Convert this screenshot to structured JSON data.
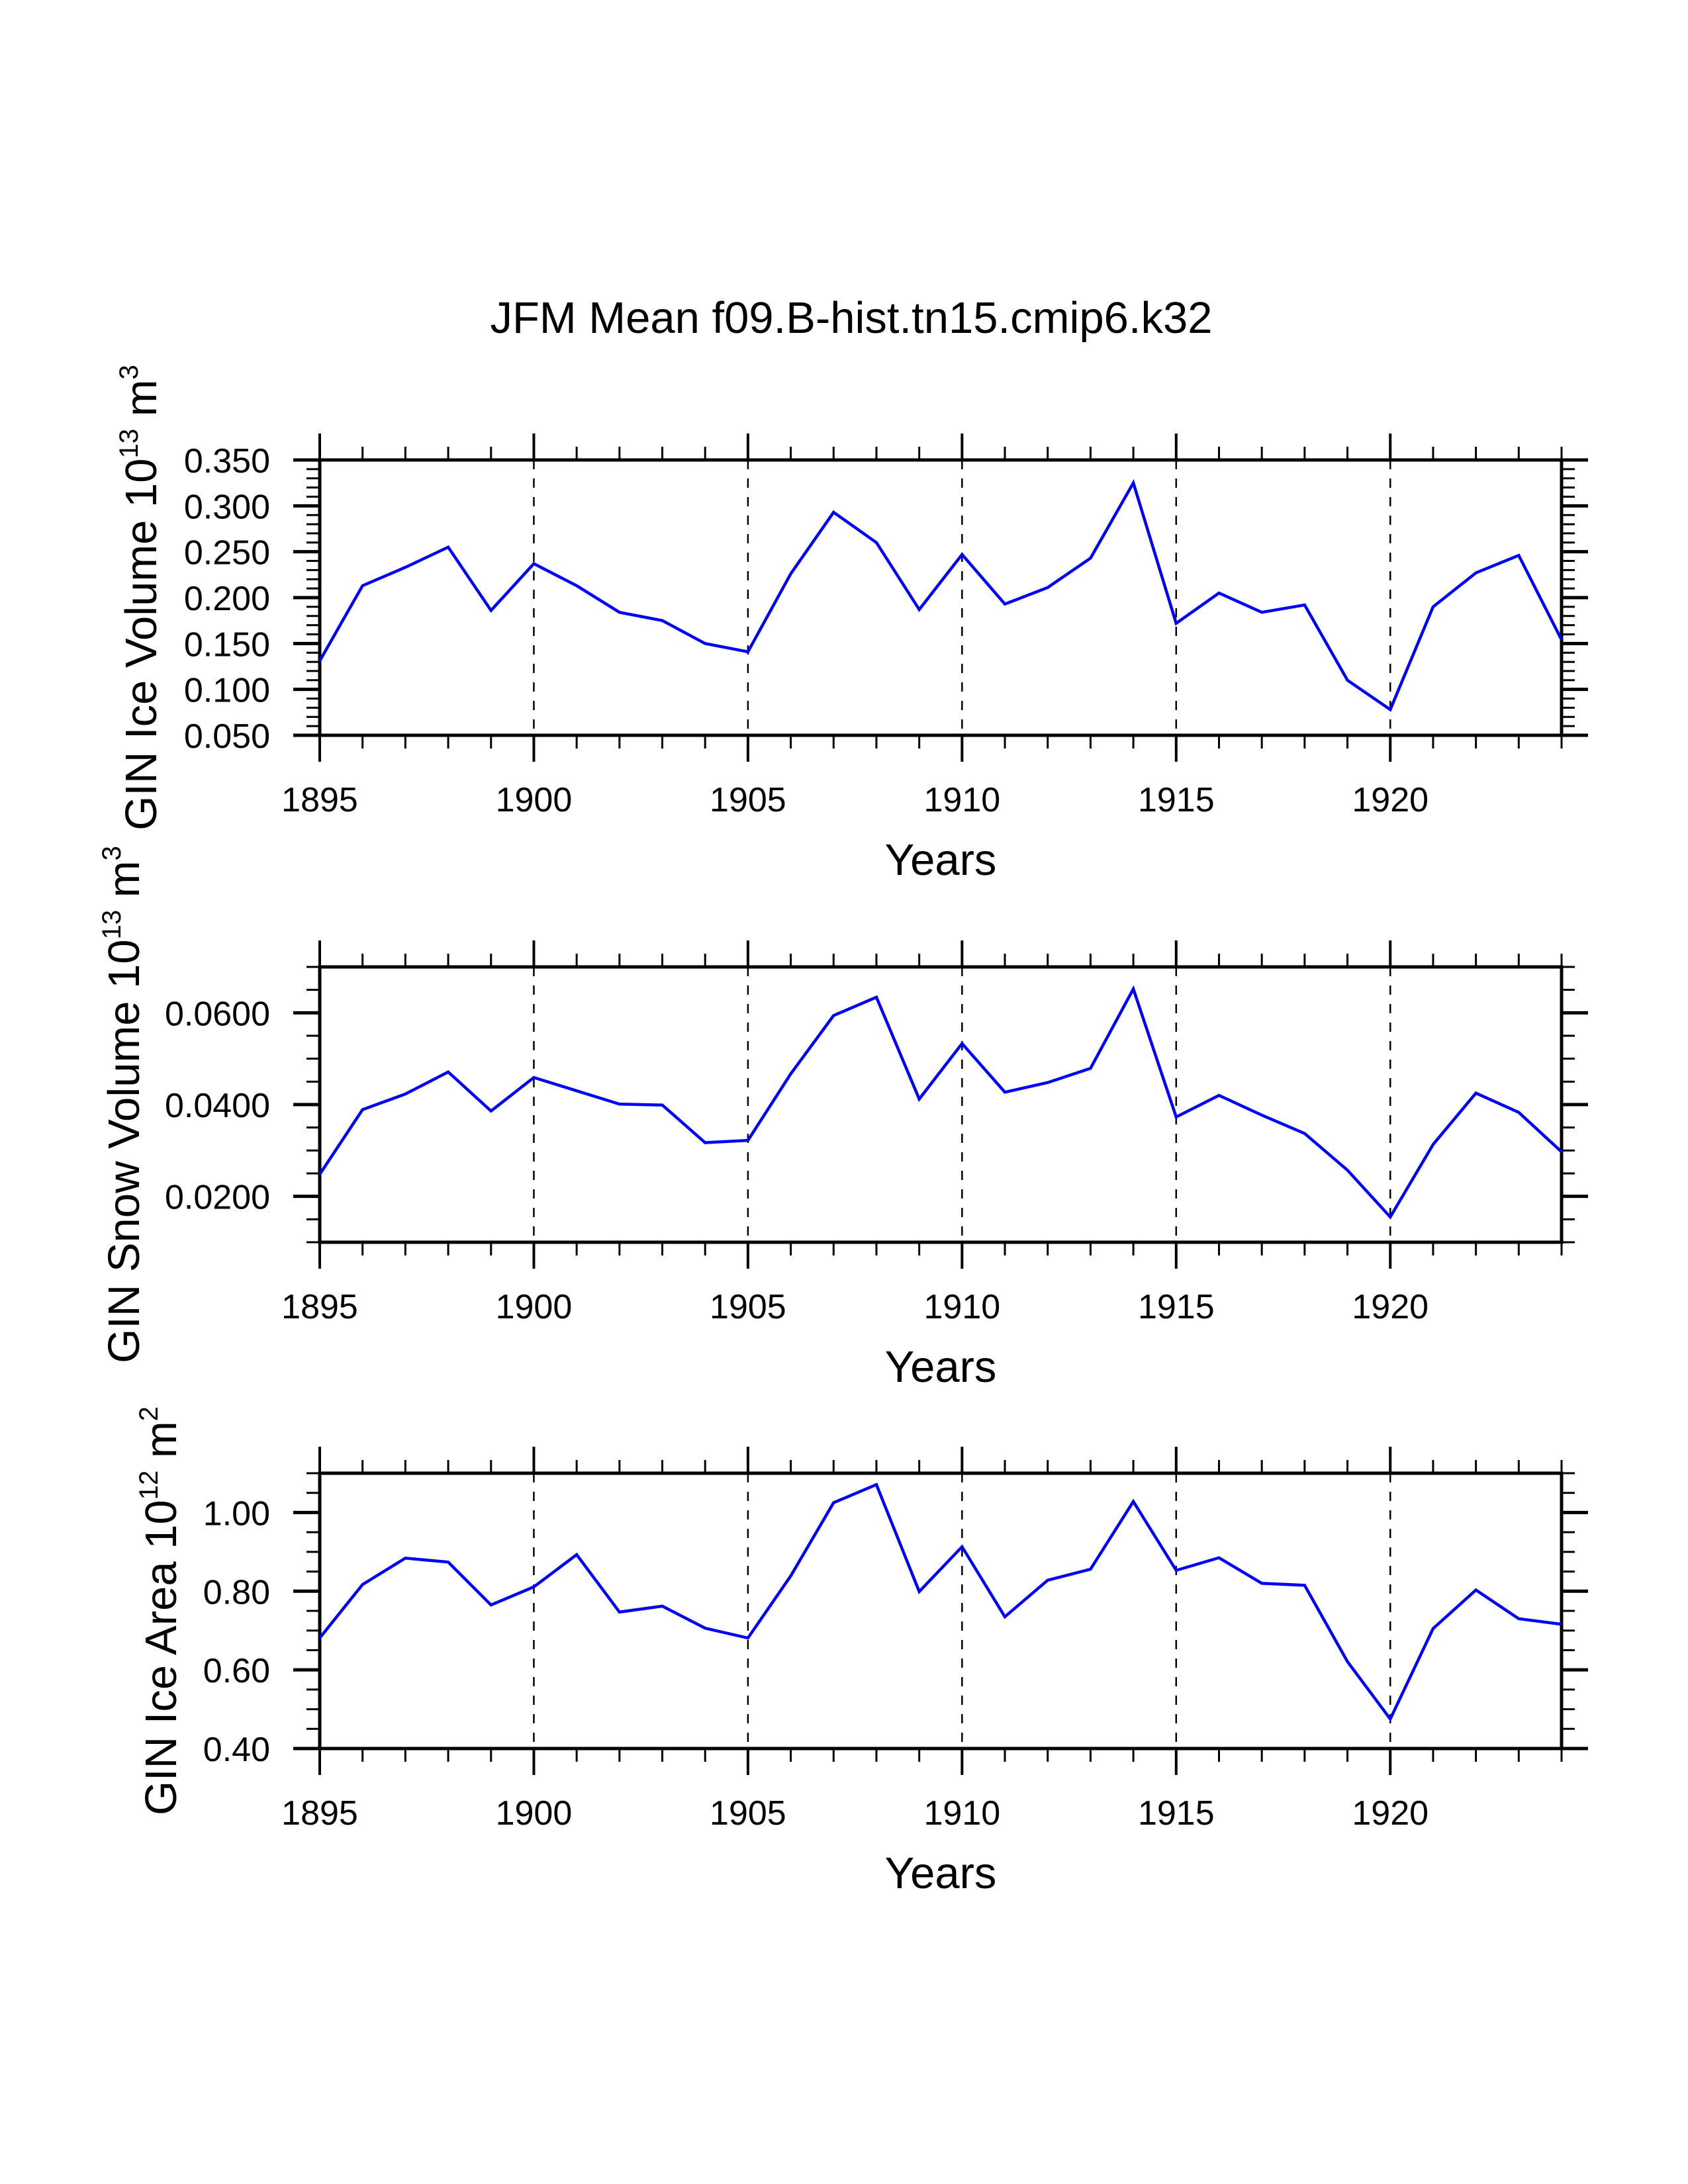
{
  "page": {
    "title": "JFM Mean f09.B-hist.tn15.cmip6.k32"
  },
  "chart_data": [
    {
      "type": "line",
      "title": "JFM Mean f09.B-hist.tn15.cmip6.k32",
      "xlabel": "Years",
      "ylabel": {
        "base": "GIN Ice Volume 10",
        "exp": "13",
        "unit": " m",
        "unit_exp": "3"
      },
      "xlim": [
        1895,
        1924
      ],
      "ylim": [
        0.05,
        0.35
      ],
      "x_major_ticks": [
        1895,
        1900,
        1905,
        1910,
        1915,
        1920
      ],
      "x_tick_labels": [
        "1895",
        "1900",
        "1905",
        "1910",
        "1915",
        "1920"
      ],
      "x_minor_step": 1,
      "y_major_ticks": [
        0.05,
        0.1,
        0.15,
        0.2,
        0.25,
        0.3,
        0.35
      ],
      "y_tick_labels": [
        "0.050",
        "0.100",
        "0.150",
        "0.200",
        "0.250",
        "0.300",
        "0.350"
      ],
      "y_minor_step": 0.01,
      "grid": {
        "x_dashed_at": [
          1900,
          1905,
          1910,
          1915,
          1920
        ],
        "y": false
      },
      "line_color": "#0000ff",
      "x": [
        1895,
        1896,
        1897,
        1898,
        1899,
        1900,
        1901,
        1902,
        1903,
        1904,
        1905,
        1906,
        1907,
        1908,
        1909,
        1910,
        1911,
        1912,
        1913,
        1914,
        1915,
        1916,
        1917,
        1918,
        1919,
        1920,
        1921,
        1922,
        1923,
        1924
      ],
      "series": [
        {
          "name": "GIN Ice Volume",
          "values": [
            0.131,
            0.213,
            0.233,
            0.255,
            0.186,
            0.237,
            0.213,
            0.184,
            0.175,
            0.15,
            0.141,
            0.226,
            0.293,
            0.26,
            0.187,
            0.247,
            0.193,
            0.211,
            0.243,
            0.325,
            0.172,
            0.205,
            0.184,
            0.192,
            0.11,
            0.078,
            0.19,
            0.227,
            0.246,
            0.154
          ]
        }
      ]
    },
    {
      "type": "line",
      "title": "",
      "xlabel": "Years",
      "ylabel": {
        "base": "GIN Snow Volume 10",
        "exp": "13",
        "unit": " m",
        "unit_exp": "3"
      },
      "xlim": [
        1895,
        1924
      ],
      "ylim": [
        0.01,
        0.07
      ],
      "x_major_ticks": [
        1895,
        1900,
        1905,
        1910,
        1915,
        1920
      ],
      "x_tick_labels": [
        "1895",
        "1900",
        "1905",
        "1910",
        "1915",
        "1920"
      ],
      "x_minor_step": 1,
      "y_major_ticks": [
        0.02,
        0.04,
        0.06
      ],
      "y_tick_labels": [
        "0.0200",
        "0.0400",
        "0.0600"
      ],
      "y_minor_step": 0.005,
      "grid": {
        "x_dashed_at": [
          1900,
          1905,
          1910,
          1915,
          1920
        ],
        "y": false
      },
      "line_color": "#0000ff",
      "x": [
        1895,
        1896,
        1897,
        1898,
        1899,
        1900,
        1901,
        1902,
        1903,
        1904,
        1905,
        1906,
        1907,
        1908,
        1909,
        1910,
        1911,
        1912,
        1913,
        1914,
        1915,
        1916,
        1917,
        1918,
        1919,
        1920,
        1921,
        1922,
        1923,
        1924
      ],
      "series": [
        {
          "name": "GIN Snow Volume",
          "values": [
            0.0248,
            0.0389,
            0.0423,
            0.0471,
            0.0386,
            0.0459,
            0.043,
            0.0401,
            0.0399,
            0.0317,
            0.0322,
            0.0467,
            0.0594,
            0.0634,
            0.0412,
            0.0533,
            0.0427,
            0.0448,
            0.0479,
            0.0652,
            0.0373,
            0.042,
            0.0377,
            0.0337,
            0.0257,
            0.0155,
            0.0313,
            0.0425,
            0.0383,
            0.0297
          ]
        }
      ]
    },
    {
      "type": "line",
      "title": "",
      "xlabel": "Years",
      "ylabel": {
        "base": "GIN Ice Area 10",
        "exp": "12",
        "unit": " m",
        "unit_exp": "2"
      },
      "xlim": [
        1895,
        1924
      ],
      "ylim": [
        0.4,
        1.1
      ],
      "x_major_ticks": [
        1895,
        1900,
        1905,
        1910,
        1915,
        1920
      ],
      "x_tick_labels": [
        "1895",
        "1900",
        "1905",
        "1910",
        "1915",
        "1920"
      ],
      "x_minor_step": 1,
      "y_major_ticks": [
        0.4,
        0.6,
        0.8,
        1.0
      ],
      "y_tick_labels": [
        "0.40",
        "0.60",
        "0.80",
        "1.00"
      ],
      "y_minor_step": 0.05,
      "grid": {
        "x_dashed_at": [
          1900,
          1905,
          1910,
          1915,
          1920
        ],
        "y": false
      },
      "line_color": "#0000ff",
      "x": [
        1895,
        1896,
        1897,
        1898,
        1899,
        1900,
        1901,
        1902,
        1903,
        1904,
        1905,
        1906,
        1907,
        1908,
        1909,
        1910,
        1911,
        1912,
        1913,
        1914,
        1915,
        1916,
        1917,
        1918,
        1919,
        1920,
        1921,
        1922,
        1923,
        1924
      ],
      "series": [
        {
          "name": "GIN Ice Area",
          "values": [
            0.681,
            0.817,
            0.884,
            0.874,
            0.765,
            0.811,
            0.893,
            0.747,
            0.762,
            0.706,
            0.681,
            0.839,
            1.025,
            1.071,
            0.799,
            0.913,
            0.735,
            0.828,
            0.856,
            1.028,
            0.853,
            0.885,
            0.82,
            0.815,
            0.621,
            0.475,
            0.705,
            0.803,
            0.73,
            0.716
          ]
        }
      ]
    }
  ]
}
